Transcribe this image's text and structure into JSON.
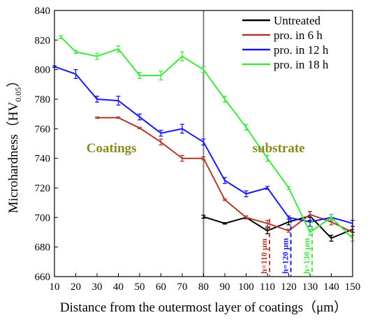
{
  "chart_data": {
    "type": "line",
    "xlabel": "Distance from the outermost layer of coatings（μm）",
    "ylabel_main": "Microhardness（HV",
    "ylabel_sub": "0.05",
    "ylabel_close": "）",
    "xlim": [
      10,
      150
    ],
    "ylim": [
      660,
      840
    ],
    "x_ticks": [
      10,
      20,
      30,
      40,
      50,
      60,
      70,
      80,
      90,
      100,
      110,
      120,
      130,
      140,
      150
    ],
    "y_ticks": [
      660,
      680,
      700,
      720,
      740,
      760,
      780,
      800,
      820,
      840
    ],
    "legend_position": "top-right",
    "series": [
      {
        "name": "Untreated",
        "color": "#000000",
        "x": [
          80,
          90,
          100,
          110,
          120,
          130,
          140,
          150
        ],
        "y": [
          700.5,
          696,
          700,
          691,
          697,
          701,
          686,
          692
        ],
        "err": [
          1,
          0,
          1,
          2,
          2,
          3,
          2,
          2
        ]
      },
      {
        "name": "pro. in 6 h",
        "color": "#b03a2e",
        "x": [
          30,
          40,
          50,
          60,
          70,
          80,
          90,
          100,
          110,
          120,
          130,
          140,
          150
        ],
        "y": [
          767.5,
          767.5,
          760.5,
          751,
          740,
          740,
          712,
          700,
          696,
          691,
          702,
          697,
          690
        ],
        "err": [
          0.5,
          0.5,
          0.5,
          2,
          2,
          1,
          0,
          1,
          2,
          1,
          2,
          2,
          2
        ]
      },
      {
        "name": "pro. in 12 h",
        "color": "#1a1ae6",
        "x": [
          10,
          20,
          30,
          40,
          50,
          60,
          70,
          80,
          90,
          100,
          110,
          120,
          130,
          140,
          150
        ],
        "y": [
          802,
          797,
          780,
          779,
          768,
          757,
          760,
          751,
          725,
          716,
          720,
          700,
          697,
          700,
          696
        ],
        "err": [
          0,
          3,
          2,
          3,
          2,
          2,
          3,
          2,
          2,
          2,
          1,
          1,
          3,
          2,
          2
        ]
      },
      {
        "name": "pro. in 18 h",
        "color": "#3de63d",
        "x": [
          13,
          20,
          30,
          40,
          50,
          60,
          70,
          80,
          90,
          100,
          110,
          120,
          130,
          140,
          150
        ],
        "y": [
          822,
          812,
          809,
          814,
          796,
          796,
          809,
          800,
          780,
          761,
          740,
          720,
          690,
          700,
          686
        ],
        "err": [
          1,
          1,
          2,
          2,
          2,
          3,
          3,
          2,
          2,
          2,
          2,
          1,
          2,
          2,
          2
        ]
      }
    ],
    "divider_x": 80,
    "region_labels": [
      {
        "text": "Coatings",
        "x": 25,
        "y": 744,
        "color": "#8a8a1e"
      },
      {
        "text": "substrate",
        "x": 103,
        "y": 744,
        "color": "#8a8a1e"
      }
    ],
    "annotations": [
      {
        "text": "h=110 μm",
        "x": 111,
        "color": "#b03a2e"
      },
      {
        "text": "h=120 μm",
        "x": 121,
        "color": "#1a1ae6"
      },
      {
        "text": "h=130 μm",
        "x": 131,
        "color": "#3de63d"
      }
    ]
  }
}
